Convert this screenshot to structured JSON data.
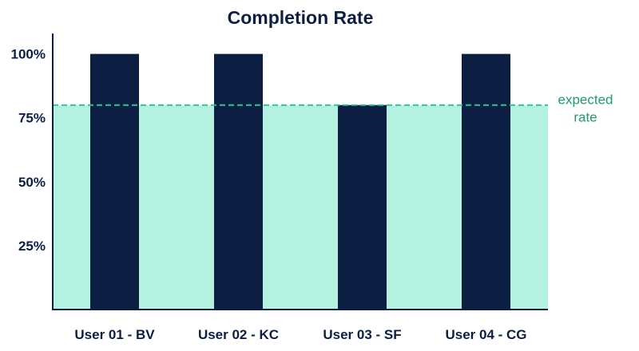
{
  "chart_data": {
    "type": "bar",
    "title": "Completion Rate",
    "categories": [
      "User 01 - BV",
      "User 02 - KC",
      "User 03 - SF",
      "User 04 - CG"
    ],
    "values": [
      100,
      100,
      80,
      100
    ],
    "y_ticks": [
      25,
      50,
      75,
      100
    ],
    "y_tick_labels": [
      "25%",
      "50%",
      "75%",
      "100%"
    ],
    "ylim": [
      0,
      108
    ],
    "grid": false,
    "reference_line": {
      "value": 80,
      "label_lines": [
        "expected",
        "rate"
      ],
      "style": "dashed",
      "shaded_below": true
    },
    "colors": {
      "bar": "#0c1f43",
      "reference_line": "#33c28f",
      "reference_fill": "#b4f1e1",
      "reference_label": "#1f9a6b",
      "text": "#0c1f43",
      "axis": "#0c1f43"
    }
  }
}
